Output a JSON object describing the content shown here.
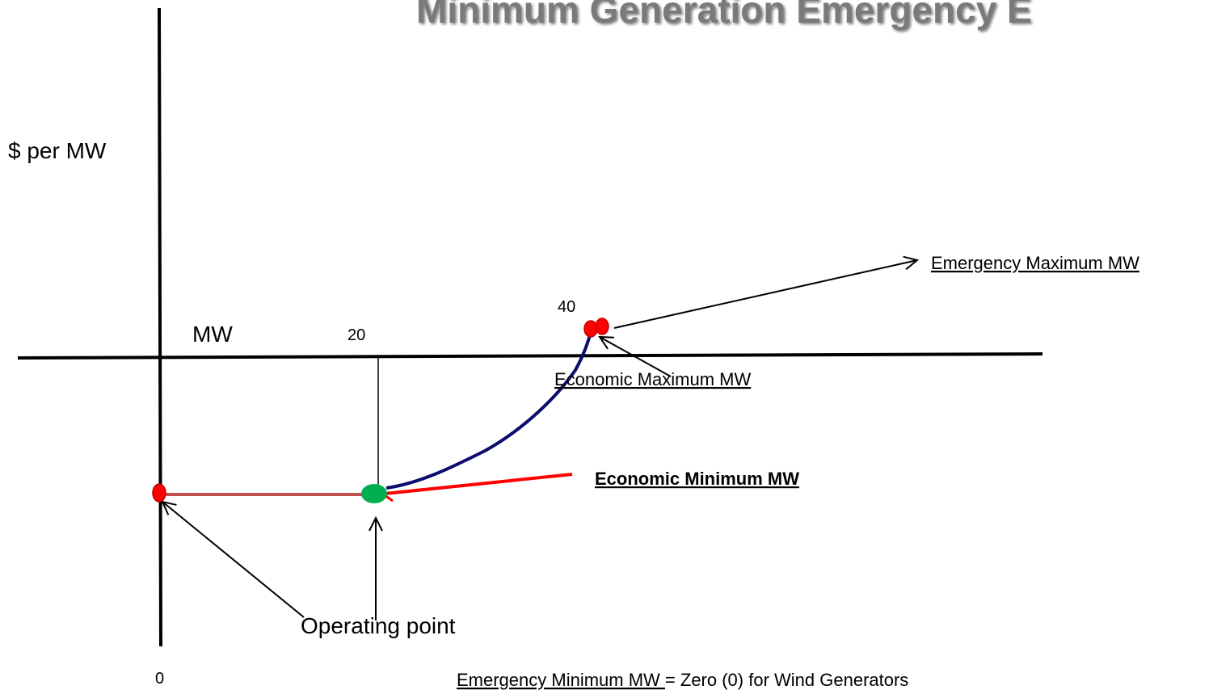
{
  "title": "Minimum Generation Emergency E",
  "axes": {
    "y_label": "$ per MW",
    "x_label": "MW",
    "tick_0": "0",
    "tick_20": "20",
    "tick_40": "40"
  },
  "annotations": {
    "emergency_max": "Emergency Maximum MW",
    "economic_max": "Economic Maximum MW",
    "economic_min": "Economic Minimum MW",
    "operating_point": "Operating point",
    "emergency_min": "Emergency Minimum MW ",
    "emergency_min_note": "= Zero (0) for Wind Generators"
  }
}
